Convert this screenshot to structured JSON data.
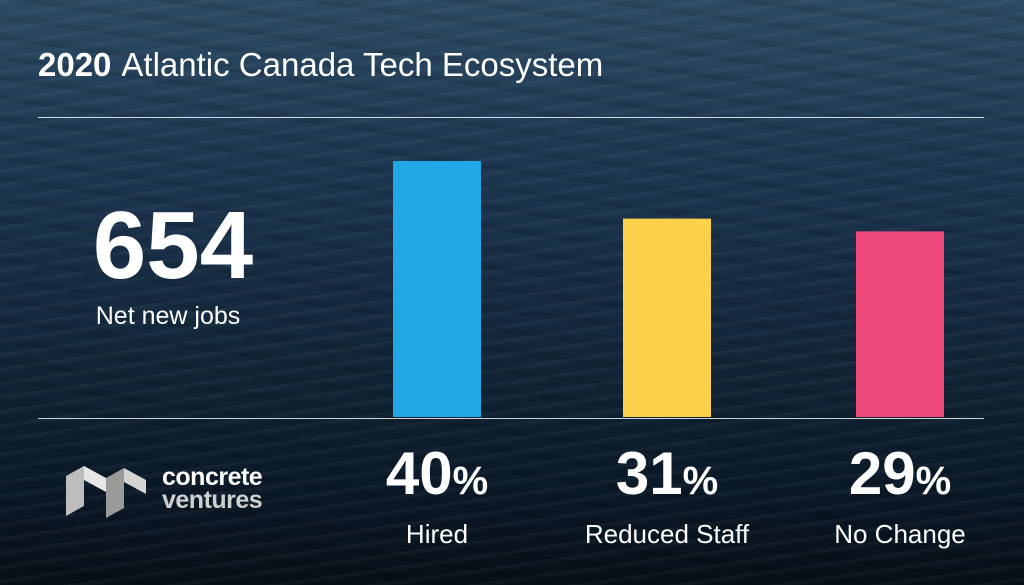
{
  "header": {
    "year": "2020",
    "title": "Atlantic Canada Tech Ecosystem"
  },
  "stat": {
    "value": "654",
    "label": "Net new jobs"
  },
  "logo": {
    "line1": "concrete",
    "line2": "ventures"
  },
  "chart_data": {
    "type": "bar",
    "title": "2020 Atlantic Canada Tech Ecosystem",
    "categories": [
      "Hired",
      "Reduced Staff",
      "No Change"
    ],
    "values": [
      40,
      31,
      29
    ],
    "value_labels": [
      "40%",
      "31%",
      "29%"
    ],
    "value_suffix": "%",
    "colors": [
      "#20a8e4",
      "#fbd14b",
      "#ee4a7b"
    ],
    "ylim": [
      0,
      40
    ],
    "grid": false,
    "legend": "none"
  }
}
